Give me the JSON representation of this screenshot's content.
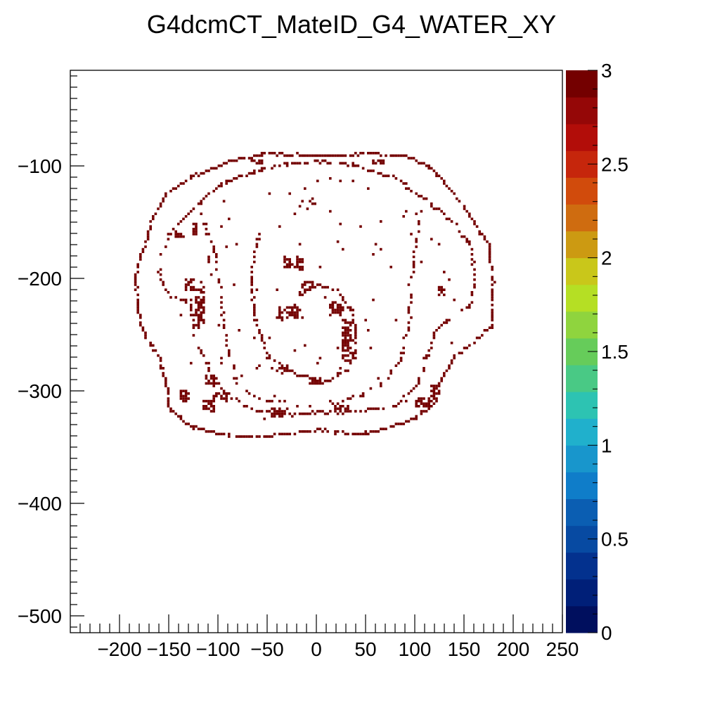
{
  "chart_data": {
    "type": "heatmap",
    "title": "G4dcmCT_MateID_G4_WATER_XY",
    "xlabel": "",
    "ylabel": "",
    "xlim": [
      -250,
      250
    ],
    "ylim": [
      -515,
      -15
    ],
    "x_ticks": [
      "−200",
      "−150",
      "−100",
      "−50",
      "0",
      "50",
      "100",
      "150",
      "200",
      "250"
    ],
    "x_tick_values": [
      -200,
      -150,
      -100,
      -50,
      0,
      50,
      100,
      150,
      200,
      250
    ],
    "y_ticks": [
      "−100",
      "−200",
      "−300",
      "−400",
      "−500"
    ],
    "y_tick_values": [
      -100,
      -200,
      -300,
      -400,
      -500
    ],
    "zlim": [
      0,
      3
    ],
    "z_ticks": [
      "0",
      "0.5",
      "1",
      "1.5",
      "2",
      "2.5",
      "3"
    ],
    "z_tick_values": [
      0,
      0.5,
      1,
      1.5,
      2,
      2.5,
      3
    ],
    "palette": [
      "#000f5e",
      "#001f78",
      "#03318e",
      "#074aa2",
      "#0b5eb2",
      "#0f7dc9",
      "#1896cc",
      "#20b0cc",
      "#2dc3b2",
      "#49c985",
      "#66cc5a",
      "#8fd43e",
      "#b5df24",
      "#c9c71a",
      "#cc9a12",
      "#cf6c10",
      "#d14b0c",
      "#c6260c",
      "#b20d09",
      "#950707",
      "#740000"
    ],
    "value": 3,
    "value_color": "#740000",
    "grid": false,
    "legend": "colorbar-right",
    "shapes": {
      "outer_boundary": [
        [
          -175,
          -170
        ],
        [
          -170,
          -150
        ],
        [
          -155,
          -125
        ],
        [
          -125,
          -108
        ],
        [
          -90,
          -95
        ],
        [
          -50,
          -88
        ],
        [
          0,
          -90
        ],
        [
          50,
          -88
        ],
        [
          90,
          -90
        ],
        [
          115,
          -100
        ],
        [
          140,
          -125
        ],
        [
          160,
          -150
        ],
        [
          175,
          -170
        ],
        [
          178,
          -200
        ],
        [
          178,
          -240
        ],
        [
          160,
          -255
        ],
        [
          140,
          -268
        ],
        [
          125,
          -290
        ],
        [
          120,
          -310
        ],
        [
          95,
          -325
        ],
        [
          60,
          -335
        ],
        [
          30,
          -337
        ],
        [
          0,
          -333
        ],
        [
          -30,
          -337
        ],
        [
          -60,
          -340
        ],
        [
          -100,
          -338
        ],
        [
          -130,
          -330
        ],
        [
          -150,
          -315
        ],
        [
          -155,
          -290
        ],
        [
          -160,
          -270
        ],
        [
          -175,
          -250
        ],
        [
          -182,
          -230
        ],
        [
          -185,
          -200
        ],
        [
          -180,
          -180
        ],
        [
          -175,
          -170
        ]
      ],
      "inner_boundary": [
        [
          -160,
          -180
        ],
        [
          -160,
          -200
        ],
        [
          -150,
          -215
        ],
        [
          -130,
          -220
        ],
        [
          -125,
          -250
        ],
        [
          -110,
          -280
        ],
        [
          -95,
          -300
        ],
        [
          -70,
          -315
        ],
        [
          -30,
          -320
        ],
        [
          0,
          -318
        ],
        [
          40,
          -318
        ],
        [
          80,
          -312
        ],
        [
          100,
          -295
        ],
        [
          110,
          -270
        ],
        [
          120,
          -245
        ],
        [
          140,
          -230
        ],
        [
          155,
          -225
        ],
        [
          160,
          -195
        ],
        [
          155,
          -170
        ],
        [
          140,
          -150
        ],
        [
          110,
          -130
        ],
        [
          80,
          -110
        ],
        [
          40,
          -98
        ],
        [
          0,
          -95
        ],
        [
          -40,
          -98
        ],
        [
          -80,
          -108
        ],
        [
          -110,
          -122
        ],
        [
          -135,
          -145
        ],
        [
          -150,
          -160
        ],
        [
          -160,
          -180
        ]
      ],
      "lung_left": [
        [
          -120,
          -140
        ],
        [
          -108,
          -165
        ],
        [
          -100,
          -200
        ],
        [
          -95,
          -240
        ],
        [
          -90,
          -270
        ],
        [
          -80,
          -295
        ],
        [
          -60,
          -305
        ],
        [
          -30,
          -310
        ]
      ],
      "lung_right": [
        [
          105,
          -140
        ],
        [
          100,
          -170
        ],
        [
          95,
          -200
        ],
        [
          93,
          -240
        ],
        [
          85,
          -270
        ],
        [
          70,
          -290
        ],
        [
          40,
          -305
        ],
        [
          10,
          -310
        ]
      ],
      "heart_ring": [
        [
          -60,
          -160
        ],
        [
          -68,
          -200
        ],
        [
          -63,
          -240
        ],
        [
          -48,
          -270
        ],
        [
          -20,
          -285
        ],
        [
          10,
          -290
        ],
        [
          30,
          -280
        ],
        [
          40,
          -260
        ],
        [
          36,
          -230
        ],
        [
          20,
          -210
        ],
        [
          0,
          -205
        ],
        [
          -20,
          -215
        ]
      ],
      "clusters": [
        [
          -30,
          -230,
          22,
          10
        ],
        [
          20,
          -225,
          14,
          12
        ],
        [
          30,
          -255,
          10,
          40
        ],
        [
          -25,
          -185,
          20,
          10
        ],
        [
          -10,
          -205,
          12,
          8
        ],
        [
          -35,
          -280,
          12,
          6
        ],
        [
          0,
          -290,
          16,
          5
        ],
        [
          -120,
          -225,
          8,
          35
        ],
        [
          -110,
          -290,
          10,
          8
        ],
        [
          -140,
          -160,
          10,
          6
        ],
        [
          -125,
          -155,
          6,
          12
        ],
        [
          -100,
          -305,
          14,
          8
        ],
        [
          -110,
          -312,
          12,
          10
        ],
        [
          -40,
          -318,
          18,
          8
        ],
        [
          25,
          -315,
          14,
          6
        ],
        [
          108,
          -310,
          16,
          8
        ],
        [
          118,
          -300,
          8,
          14
        ],
        [
          125,
          -210,
          8,
          8
        ],
        [
          -5,
          -130,
          6,
          6
        ],
        [
          -130,
          -205,
          10,
          10
        ],
        [
          -135,
          -303,
          10,
          10
        ],
        [
          -60,
          -95,
          15,
          4
        ],
        [
          60,
          -95,
          15,
          4
        ]
      ],
      "scatter_seed": 12345,
      "scatter_count": 260
    }
  }
}
